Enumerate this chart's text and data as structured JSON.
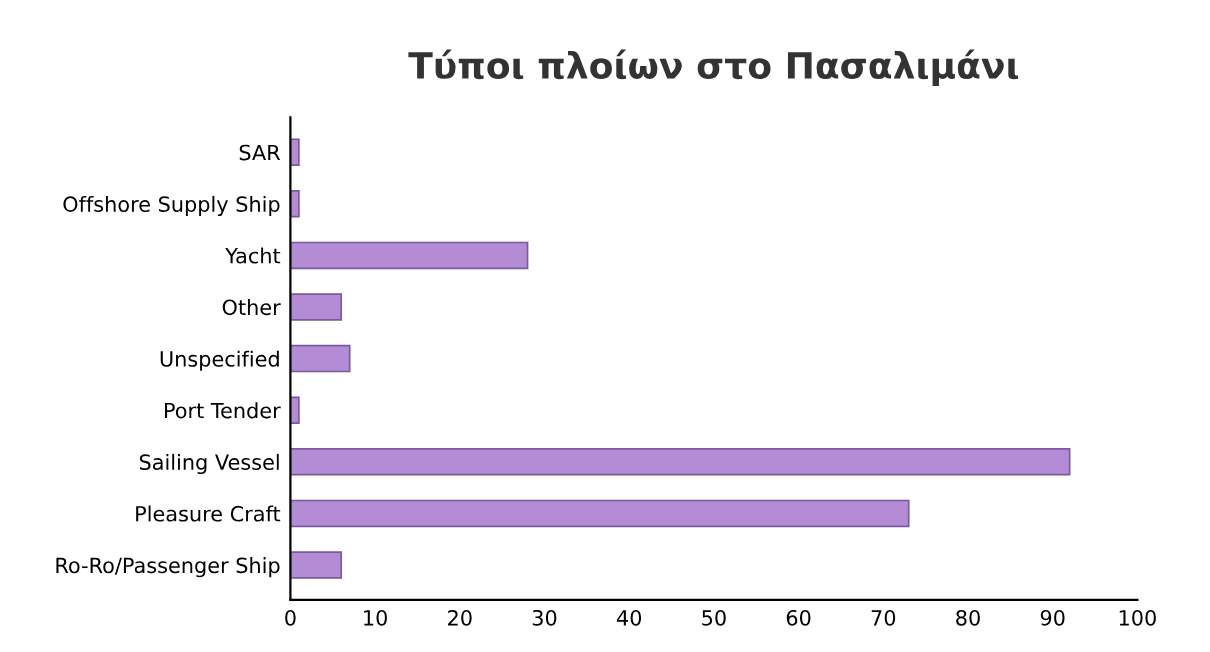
{
  "chart_data": {
    "type": "bar",
    "orientation": "horizontal",
    "title": "Τύποι πλοίων στο Πασαλιμάνι",
    "categories": [
      "SAR",
      "Offshore Supply Ship",
      "Yacht",
      "Other",
      "Unspecified",
      "Port Tender",
      "Sailing Vessel",
      "Pleasure Craft",
      "Ro-Ro/Passenger Ship"
    ],
    "values": [
      1,
      1,
      28,
      6,
      7,
      1,
      92,
      73,
      6
    ],
    "color": "#b48cd6",
    "xlim": [
      0,
      100
    ],
    "xticks": [
      0,
      10,
      20,
      30,
      40,
      50,
      60,
      70,
      80,
      90,
      100
    ],
    "grid": false
  }
}
